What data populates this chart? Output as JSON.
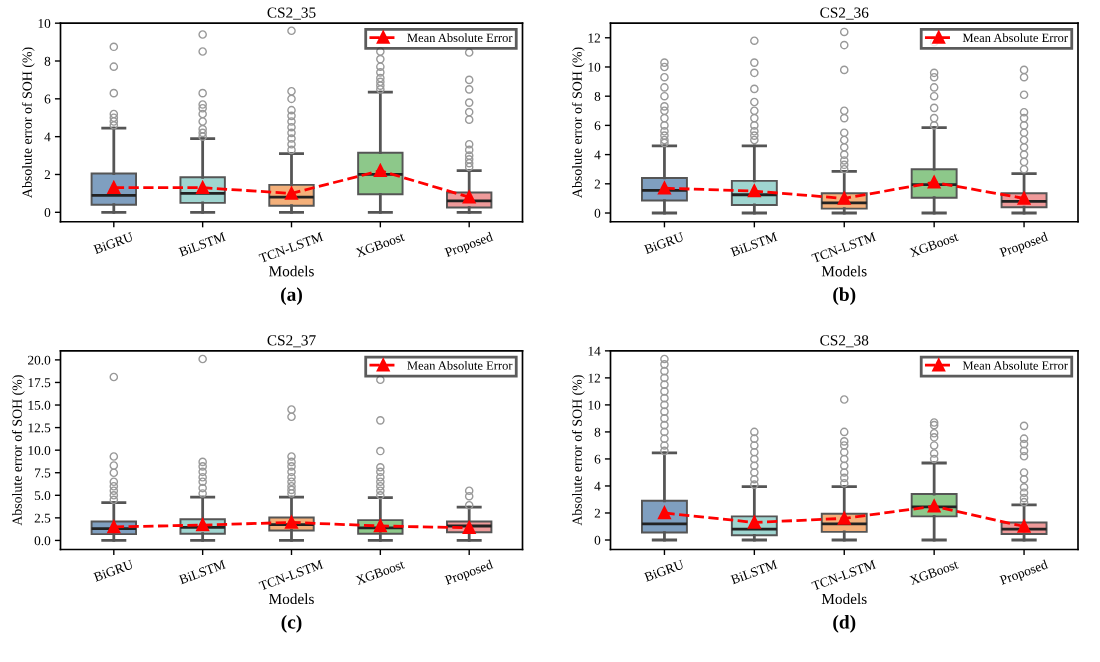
{
  "chart_data": [
    {
      "type": "box",
      "title": "CS2_35",
      "xlabel": "Models",
      "ylabel": "Absolute error of SOH (%)",
      "categories": [
        "BiGRU",
        "BiLSTM",
        "TCN-LSTM",
        "XGBoost",
        "Proposed"
      ],
      "ylim": [
        -0.5,
        10
      ],
      "yticks": [
        0,
        2,
        4,
        6,
        8,
        10
      ],
      "legend": "top right",
      "annotations": [
        "(a)"
      ],
      "series": [
        {
          "type": "box",
          "colors": [
            "#7f9fc0",
            "#9fd5d0",
            "#f4b07a",
            "#8dc88a",
            "#ef9a9a"
          ],
          "boxes": [
            {
              "low": 0,
              "q1": 0.4,
              "median": 0.9,
              "q3": 2.05,
              "high": 4.45,
              "outliers": [
                4.6,
                4.8,
                5.0,
                5.2,
                6.3,
                7.7,
                8.75
              ]
            },
            {
              "low": 0,
              "q1": 0.5,
              "median": 1.0,
              "q3": 1.85,
              "high": 3.9,
              "outliers": [
                4.0,
                4.2,
                4.4,
                4.8,
                5.2,
                5.5,
                5.7,
                6.3,
                8.5,
                9.4
              ]
            },
            {
              "low": 0,
              "q1": 0.35,
              "median": 0.8,
              "q3": 1.45,
              "high": 3.1,
              "outliers": [
                3.3,
                3.6,
                3.9,
                4.2,
                4.5,
                4.8,
                5.1,
                5.4,
                6.0,
                6.4,
                9.6
              ]
            },
            {
              "low": 0,
              "q1": 0.95,
              "median": 2.0,
              "q3": 3.15,
              "high": 6.35,
              "outliers": [
                6.5,
                6.7,
                6.9,
                7.1,
                7.4,
                7.7,
                8.1,
                8.5
              ]
            },
            {
              "low": 0,
              "q1": 0.25,
              "median": 0.6,
              "q3": 1.05,
              "high": 2.2,
              "outliers": [
                2.4,
                2.6,
                2.8,
                3.0,
                3.3,
                3.6,
                4.9,
                5.3,
                5.8,
                6.5,
                7.0,
                8.45
              ]
            }
          ]
        },
        {
          "type": "line",
          "name": "Mean Absolute Error",
          "color": "#ff0000",
          "marker": "triangle",
          "line_style": "dashed",
          "values": [
            1.3,
            1.3,
            1.0,
            2.2,
            0.8
          ]
        }
      ]
    },
    {
      "type": "box",
      "title": "CS2_36",
      "xlabel": "Models",
      "ylabel": "Absolute error of SOH (%)",
      "categories": [
        "BiGRU",
        "BiLSTM",
        "TCN-LSTM",
        "XGBoost",
        "Proposed"
      ],
      "ylim": [
        -0.6,
        13
      ],
      "yticks": [
        0,
        2,
        4,
        6,
        8,
        10,
        12
      ],
      "legend": "top right",
      "annotations": [
        "(b)"
      ],
      "series": [
        {
          "type": "box",
          "colors": [
            "#7f9fc0",
            "#9fd5d0",
            "#f4b07a",
            "#8dc88a",
            "#ef9a9a"
          ],
          "boxes": [
            {
              "low": 0,
              "q1": 0.85,
              "median": 1.55,
              "q3": 2.4,
              "high": 4.6,
              "outliers": [
                4.8,
                5.0,
                5.3,
                5.6,
                6.0,
                6.5,
                7.0,
                7.3,
                8.0,
                8.6,
                9.3,
                10.0,
                10.3
              ]
            },
            {
              "low": 0,
              "q1": 0.55,
              "median": 1.25,
              "q3": 2.2,
              "high": 4.6,
              "outliers": [
                5.0,
                5.3,
                5.6,
                6.0,
                6.5,
                7.0,
                7.6,
                8.5,
                9.6,
                10.3,
                11.8
              ]
            },
            {
              "low": 0,
              "q1": 0.3,
              "median": 0.7,
              "q3": 1.35,
              "high": 2.85,
              "outliers": [
                3.0,
                3.3,
                3.6,
                4.0,
                4.5,
                5.0,
                5.5,
                6.5,
                7.0,
                9.8,
                11.5,
                12.4
              ]
            },
            {
              "low": 0,
              "q1": 1.05,
              "median": 1.95,
              "q3": 3.0,
              "high": 5.85,
              "outliers": [
                6.0,
                6.5,
                7.2,
                8.0,
                8.6,
                9.3,
                9.6,
                11.7
              ]
            },
            {
              "low": 0,
              "q1": 0.4,
              "median": 0.8,
              "q3": 1.35,
              "high": 2.7,
              "outliers": [
                3.0,
                3.5,
                4.0,
                4.5,
                5.0,
                5.5,
                6.0,
                6.5,
                6.9,
                8.1,
                9.3,
                9.8
              ]
            }
          ]
        },
        {
          "type": "line",
          "name": "Mean Absolute Error",
          "color": "#ff0000",
          "marker": "triangle",
          "line_style": "dashed",
          "values": [
            1.7,
            1.5,
            1.0,
            2.1,
            1.0
          ]
        }
      ]
    },
    {
      "type": "box",
      "title": "CS2_37",
      "xlabel": "Models",
      "ylabel": "Absolute error of SOH (%)",
      "categories": [
        "BiGRU",
        "BiLSTM",
        "TCN-LSTM",
        "XGBoost",
        "Proposed"
      ],
      "ylim": [
        -1,
        21
      ],
      "yticks": [
        {
          "value": 0,
          "label": "0.0"
        },
        2.5,
        {
          "value": 5,
          "label": "5.0"
        },
        7.5,
        {
          "value": 10,
          "label": "10.0"
        },
        12.5,
        {
          "value": 15,
          "label": "15.0"
        },
        17.5,
        {
          "value": 20,
          "label": "20.0"
        }
      ],
      "legend": "top right",
      "annotations": [
        "(c)"
      ],
      "series": [
        {
          "type": "box",
          "colors": [
            "#7f9fc0",
            "#9fd5d0",
            "#f4b07a",
            "#8dc88a",
            "#ef9a9a"
          ],
          "boxes": [
            {
              "low": 0,
              "q1": 0.7,
              "median": 1.3,
              "q3": 2.1,
              "high": 4.2,
              "outliers": [
                4.5,
                5.0,
                5.5,
                6.0,
                6.5,
                7.5,
                8.3,
                9.3,
                18.1
              ]
            },
            {
              "low": 0,
              "q1": 0.75,
              "median": 1.45,
              "q3": 2.35,
              "high": 4.8,
              "outliers": [
                5.2,
                5.8,
                6.5,
                7.0,
                7.6,
                8.2,
                8.7,
                20.1
              ]
            },
            {
              "low": 0,
              "q1": 1.1,
              "median": 1.75,
              "q3": 2.55,
              "high": 4.8,
              "outliers": [
                5.2,
                5.6,
                6.0,
                6.5,
                7.0,
                7.6,
                8.2,
                8.7,
                9.3,
                13.7,
                14.5
              ]
            },
            {
              "low": 0,
              "q1": 0.75,
              "median": 1.4,
              "q3": 2.25,
              "high": 4.75,
              "outliers": [
                5.0,
                5.5,
                6.0,
                6.5,
                7.0,
                7.6,
                8.1,
                9.9,
                13.3,
                17.8
              ]
            },
            {
              "low": 0,
              "q1": 0.9,
              "median": 1.6,
              "q3": 2.1,
              "high": 3.7,
              "outliers": [
                3.9,
                4.9,
                5.5
              ]
            }
          ]
        },
        {
          "type": "line",
          "name": "Mean Absolute Error",
          "color": "#ff0000",
          "marker": "triangle",
          "line_style": "dashed",
          "values": [
            1.5,
            1.7,
            2.0,
            1.6,
            1.4
          ]
        }
      ]
    },
    {
      "type": "box",
      "title": "CS2_38",
      "xlabel": "Models",
      "ylabel": "Absolute error of SOH (%)",
      "categories": [
        "BiGRU",
        "BiLSTM",
        "TCN-LSTM",
        "XGBoost",
        "Proposed"
      ],
      "ylim": [
        -0.7,
        14
      ],
      "yticks": [
        0,
        2,
        4,
        6,
        8,
        10,
        12,
        14
      ],
      "legend": "top right",
      "annotations": [
        "(d)"
      ],
      "series": [
        {
          "type": "box",
          "colors": [
            "#7f9fc0",
            "#9fd5d0",
            "#f4b07a",
            "#8dc88a",
            "#ef9a9a"
          ],
          "boxes": [
            {
              "low": 0,
              "q1": 0.55,
              "median": 1.2,
              "q3": 2.9,
              "high": 6.45,
              "outliers": [
                6.6,
                7.0,
                7.5,
                8.0,
                8.5,
                9.0,
                9.5,
                10.0,
                10.5,
                11.0,
                11.5,
                12.0,
                12.5,
                13.0,
                13.4
              ]
            },
            {
              "low": 0,
              "q1": 0.35,
              "median": 0.8,
              "q3": 1.75,
              "high": 3.95,
              "outliers": [
                4.1,
                4.5,
                5.0,
                5.5,
                6.0,
                6.5,
                7.0,
                7.5,
                8.0
              ]
            },
            {
              "low": 0,
              "q1": 0.6,
              "median": 1.2,
              "q3": 1.95,
              "high": 3.95,
              "outliers": [
                4.2,
                4.6,
                5.0,
                5.5,
                6.0,
                6.5,
                7.0,
                7.3,
                8.0,
                10.4
              ]
            },
            {
              "low": 0,
              "q1": 1.75,
              "median": 2.45,
              "q3": 3.4,
              "high": 5.7,
              "outliers": [
                6.0,
                6.4,
                7.0,
                7.6,
                7.9,
                8.5,
                8.7
              ]
            },
            {
              "low": 0,
              "q1": 0.45,
              "median": 0.8,
              "q3": 1.3,
              "high": 2.6,
              "outliers": [
                2.8,
                3.1,
                3.5,
                3.9,
                4.5,
                5.0,
                6.2,
                6.6,
                7.1,
                7.5,
                8.45
              ]
            }
          ]
        },
        {
          "type": "line",
          "name": "Mean Absolute Error",
          "color": "#ff0000",
          "marker": "triangle",
          "line_style": "dashed",
          "values": [
            2.0,
            1.3,
            1.6,
            2.5,
            1.0
          ]
        }
      ]
    }
  ]
}
